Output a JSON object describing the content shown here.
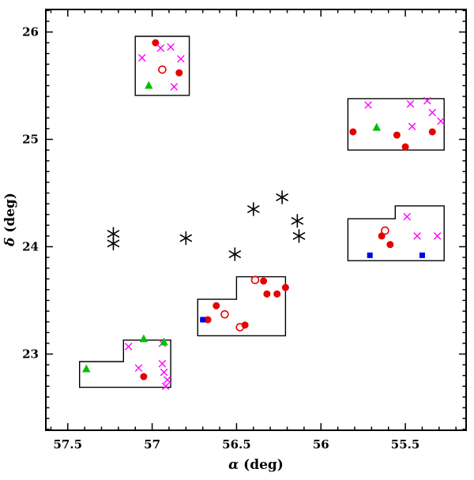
{
  "chart_data": {
    "type": "scatter",
    "title": "",
    "xlabel_symbol": "α",
    "xlabel_unit": " (deg)",
    "ylabel_symbol": "δ",
    "ylabel_unit": " (deg)",
    "grid": false,
    "legend": false,
    "x_axis": {
      "lim": [
        57.63,
        55.14
      ],
      "reversed": true,
      "minor_step": 0.1,
      "major_ticks": [
        {
          "value": 57.5,
          "label": "57.5"
        },
        {
          "value": 57.0,
          "label": "57"
        },
        {
          "value": 56.5,
          "label": "56.5"
        },
        {
          "value": 56.0,
          "label": "56"
        },
        {
          "value": 55.5,
          "label": "55.5"
        }
      ]
    },
    "y_axis": {
      "lim": [
        22.29,
        26.21
      ],
      "minor_step": 0.1,
      "major_ticks": [
        {
          "value": 23,
          "label": "23"
        },
        {
          "value": 24,
          "label": "24"
        },
        {
          "value": 25,
          "label": "25"
        },
        {
          "value": 26,
          "label": "26"
        }
      ]
    },
    "series": [
      {
        "name": "asterisks",
        "marker": "asterisk",
        "color": "#000000",
        "size": 8,
        "points": [
          [
            57.23,
            24.12
          ],
          [
            57.23,
            24.03
          ],
          [
            56.8,
            24.08
          ],
          [
            56.51,
            23.93
          ],
          [
            56.4,
            24.35
          ],
          [
            56.23,
            24.46
          ],
          [
            56.14,
            24.24
          ],
          [
            56.13,
            24.1
          ]
        ]
      },
      {
        "name": "filled-circles",
        "marker": "circle-filled",
        "color": "#e60000",
        "size": 4.5,
        "points": [
          [
            56.98,
            25.9
          ],
          [
            56.84,
            25.62
          ],
          [
            55.81,
            25.07
          ],
          [
            55.55,
            25.04
          ],
          [
            55.5,
            24.93
          ],
          [
            55.34,
            25.07
          ],
          [
            55.64,
            24.1
          ],
          [
            55.59,
            24.02
          ],
          [
            56.67,
            23.32
          ],
          [
            56.62,
            23.45
          ],
          [
            56.45,
            23.27
          ],
          [
            56.34,
            23.68
          ],
          [
            56.32,
            23.56
          ],
          [
            56.26,
            23.56
          ],
          [
            56.21,
            23.62
          ],
          [
            57.05,
            22.79
          ]
        ]
      },
      {
        "name": "open-circles",
        "marker": "circle-open",
        "color": "#e60000",
        "size": 4.5,
        "points": [
          [
            56.94,
            25.65
          ],
          [
            55.62,
            24.15
          ],
          [
            56.57,
            23.37
          ],
          [
            56.48,
            23.25
          ],
          [
            56.39,
            23.69
          ]
        ]
      },
      {
        "name": "crosses",
        "marker": "x",
        "color": "#ff00ff",
        "size": 4.3,
        "points": [
          [
            57.06,
            25.76
          ],
          [
            56.95,
            25.85
          ],
          [
            56.89,
            25.86
          ],
          [
            56.83,
            25.75
          ],
          [
            56.87,
            25.49
          ],
          [
            55.72,
            25.32
          ],
          [
            55.47,
            25.33
          ],
          [
            55.37,
            25.36
          ],
          [
            55.34,
            25.25
          ],
          [
            55.46,
            25.12
          ],
          [
            55.29,
            25.17
          ],
          [
            55.49,
            24.28
          ],
          [
            55.43,
            24.1
          ],
          [
            55.31,
            24.1
          ],
          [
            57.14,
            23.07
          ],
          [
            56.94,
            23.1
          ],
          [
            57.08,
            22.87
          ],
          [
            56.94,
            22.91
          ],
          [
            56.93,
            22.83
          ],
          [
            56.91,
            22.76
          ],
          [
            56.92,
            22.7
          ]
        ]
      },
      {
        "name": "triangles",
        "marker": "triangle-filled",
        "color": "#00c000",
        "size": 5.5,
        "points": [
          [
            57.02,
            25.5
          ],
          [
            55.67,
            25.11
          ],
          [
            57.39,
            22.86
          ],
          [
            57.05,
            23.14
          ],
          [
            56.93,
            23.11
          ]
        ]
      },
      {
        "name": "squares",
        "marker": "square-filled",
        "color": "#0000ee",
        "size": 3.5,
        "points": [
          [
            56.7,
            23.32
          ],
          [
            55.71,
            23.92
          ],
          [
            55.4,
            23.92
          ]
        ]
      }
    ],
    "regions": [
      {
        "name": "field-northwest",
        "polygon": [
          [
            57.1,
            25.41
          ],
          [
            56.78,
            25.41
          ],
          [
            56.78,
            25.96
          ],
          [
            57.1,
            25.96
          ]
        ]
      },
      {
        "name": "field-northeast",
        "polygon": [
          [
            55.84,
            24.9
          ],
          [
            55.27,
            24.9
          ],
          [
            55.27,
            25.38
          ],
          [
            55.84,
            25.38
          ]
        ]
      },
      {
        "name": "field-east",
        "polygon": [
          [
            55.84,
            24.26
          ],
          [
            55.56,
            24.26
          ],
          [
            55.56,
            24.38
          ],
          [
            55.27,
            24.38
          ],
          [
            55.27,
            23.87
          ],
          [
            55.84,
            23.87
          ]
        ]
      },
      {
        "name": "field-center",
        "polygon": [
          [
            56.73,
            23.51
          ],
          [
            56.5,
            23.51
          ],
          [
            56.5,
            23.72
          ],
          [
            56.21,
            23.72
          ],
          [
            56.21,
            23.17
          ],
          [
            56.73,
            23.17
          ]
        ]
      },
      {
        "name": "field-southwest",
        "polygon": [
          [
            57.43,
            22.93
          ],
          [
            57.17,
            22.93
          ],
          [
            57.17,
            23.13
          ],
          [
            56.89,
            23.13
          ],
          [
            56.89,
            22.69
          ],
          [
            57.43,
            22.69
          ]
        ]
      }
    ]
  }
}
